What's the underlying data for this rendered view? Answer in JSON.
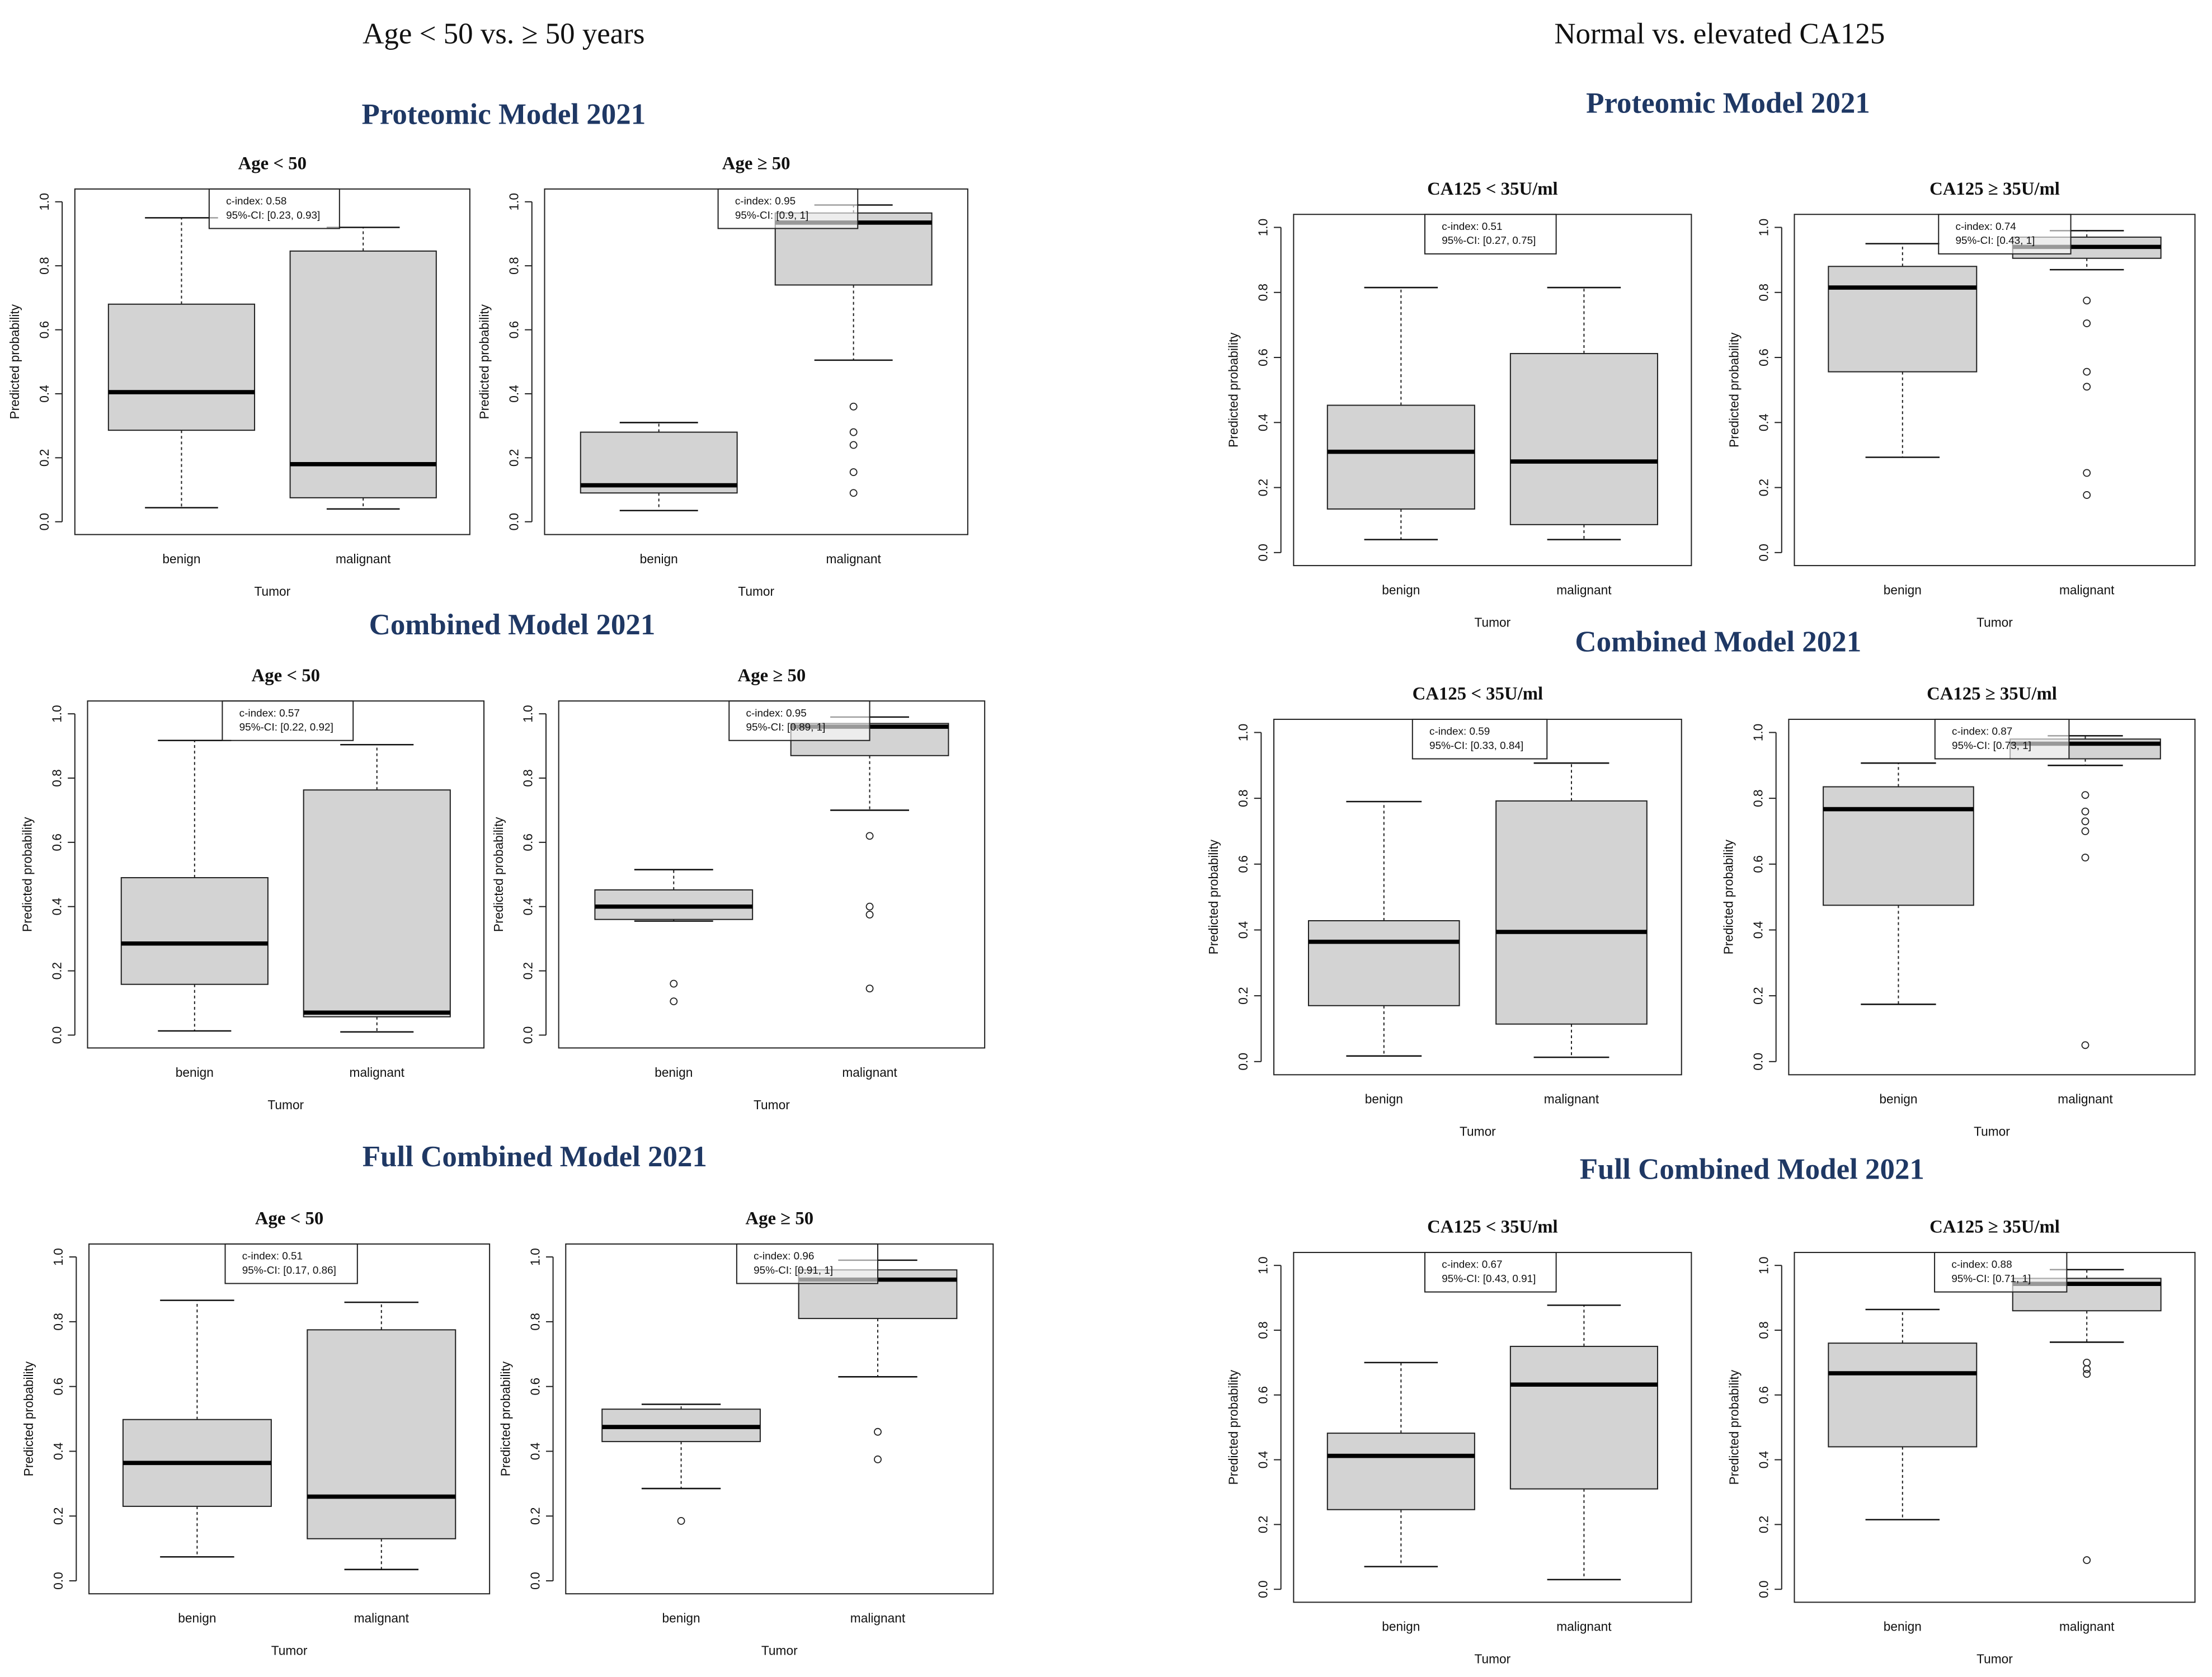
{
  "column_titles": [
    "Age < 50 vs. ≥ 50 years",
    "Normal vs. elevated CA125"
  ],
  "section_titles": [
    "Proteomic Model 2021",
    "Combined Model 2021",
    "Full Combined Model 2021",
    "Proteomic Model 2021",
    "Combined Model 2021",
    "Full Combined Model 2021"
  ],
  "chart_data": [
    {
      "type": "box",
      "title": "Age < 50",
      "xlabel": "Tumor",
      "ylabel": "Predicted probability",
      "categories": [
        "benign",
        "malignant"
      ],
      "annotation": [
        "c-index: 0.58",
        "95%-CI: [0.23, 0.93]"
      ],
      "ylim": [
        -0.04,
        1.04
      ],
      "yticks": [
        {
          "value": 0,
          "label": "0.0"
        },
        0.2,
        0.4,
        0.6,
        0.8,
        {
          "value": 1,
          "label": "1.0"
        }
      ],
      "boxes": [
        {
          "whislo": 0.044,
          "q1": 0.286,
          "med": 0.405,
          "q3": 0.68,
          "whishi": 0.95,
          "fliers": []
        },
        {
          "whislo": 0.04,
          "q1": 0.075,
          "med": 0.18,
          "q3": 0.846,
          "whishi": 0.92,
          "fliers": []
        }
      ]
    },
    {
      "type": "box",
      "title": "Age ≥ 50",
      "xlabel": "Tumor",
      "ylabel": "Predicted probability",
      "categories": [
        "benign",
        "malignant"
      ],
      "annotation": [
        "c-index: 0.95",
        "95%-CI: [0.9, 1]"
      ],
      "ylim": [
        -0.04,
        1.04
      ],
      "yticks": [
        {
          "value": 0,
          "label": "0.0"
        },
        0.2,
        0.4,
        0.6,
        0.8,
        {
          "value": 1,
          "label": "1.0"
        }
      ],
      "boxes": [
        {
          "whislo": 0.035,
          "q1": 0.09,
          "med": 0.114,
          "q3": 0.28,
          "whishi": 0.31,
          "fliers": []
        },
        {
          "whislo": 0.505,
          "q1": 0.74,
          "med": 0.935,
          "q3": 0.965,
          "whishi": 0.99,
          "fliers": [
            0.36,
            0.28,
            0.24,
            0.155,
            0.09
          ]
        }
      ]
    },
    {
      "type": "box",
      "title": "Age < 50",
      "xlabel": "Tumor",
      "ylabel": "Predicted probability",
      "categories": [
        "benign",
        "malignant"
      ],
      "annotation": [
        "c-index: 0.57",
        "95%-CI: [0.22, 0.92]"
      ],
      "ylim": [
        -0.04,
        1.04
      ],
      "yticks": [
        {
          "value": 0,
          "label": "0.0"
        },
        0.2,
        0.4,
        0.6,
        0.8,
        {
          "value": 1,
          "label": "1.0"
        }
      ],
      "boxes": [
        {
          "whislo": 0.013,
          "q1": 0.158,
          "med": 0.285,
          "q3": 0.49,
          "whishi": 0.917,
          "fliers": []
        },
        {
          "whislo": 0.01,
          "q1": 0.057,
          "med": 0.07,
          "q3": 0.763,
          "whishi": 0.904,
          "fliers": []
        }
      ]
    },
    {
      "type": "box",
      "title": "Age ≥ 50",
      "xlabel": "Tumor",
      "ylabel": "Predicted probability",
      "categories": [
        "benign",
        "malignant"
      ],
      "annotation": [
        "c-index: 0.95",
        "95%-CI: [0.89, 1]"
      ],
      "ylim": [
        -0.04,
        1.04
      ],
      "yticks": [
        {
          "value": 0,
          "label": "0.0"
        },
        0.2,
        0.4,
        0.6,
        0.8,
        {
          "value": 1,
          "label": "1.0"
        }
      ],
      "boxes": [
        {
          "whislo": 0.355,
          "q1": 0.36,
          "med": 0.4,
          "q3": 0.452,
          "whishi": 0.515,
          "fliers": [
            0.16,
            0.105
          ]
        },
        {
          "whislo": 0.7,
          "q1": 0.87,
          "med": 0.96,
          "q3": 0.97,
          "whishi": 0.99,
          "fliers": [
            0.62,
            0.4,
            0.375,
            0.145
          ]
        }
      ]
    },
    {
      "type": "box",
      "title": "Age < 50",
      "xlabel": "Tumor",
      "ylabel": "Predicted probability",
      "categories": [
        "benign",
        "malignant"
      ],
      "annotation": [
        "c-index: 0.51",
        "95%-CI: [0.17, 0.86]"
      ],
      "ylim": [
        -0.04,
        1.04
      ],
      "yticks": [
        {
          "value": 0,
          "label": "0.0"
        },
        0.2,
        0.4,
        0.6,
        0.8,
        {
          "value": 1,
          "label": "1.0"
        }
      ],
      "boxes": [
        {
          "whislo": 0.074,
          "q1": 0.23,
          "med": 0.364,
          "q3": 0.498,
          "whishi": 0.866,
          "fliers": []
        },
        {
          "whislo": 0.035,
          "q1": 0.13,
          "med": 0.26,
          "q3": 0.775,
          "whishi": 0.86,
          "fliers": []
        }
      ]
    },
    {
      "type": "box",
      "title": "Age ≥ 50",
      "xlabel": "Tumor",
      "ylabel": "Predicted probability",
      "categories": [
        "benign",
        "malignant"
      ],
      "annotation": [
        "c-index: 0.96",
        "95%-CI: [0.91, 1]"
      ],
      "ylim": [
        -0.04,
        1.04
      ],
      "yticks": [
        {
          "value": 0,
          "label": "0.0"
        },
        0.2,
        0.4,
        0.6,
        0.8,
        {
          "value": 1,
          "label": "1.0"
        }
      ],
      "boxes": [
        {
          "whislo": 0.285,
          "q1": 0.43,
          "med": 0.475,
          "q3": 0.53,
          "whishi": 0.545,
          "fliers": [
            0.185
          ]
        },
        {
          "whislo": 0.63,
          "q1": 0.81,
          "med": 0.93,
          "q3": 0.96,
          "whishi": 0.99,
          "fliers": [
            0.46,
            0.375
          ]
        }
      ]
    },
    {
      "type": "box",
      "title": "CA125 < 35U/ml",
      "xlabel": "Tumor",
      "ylabel": "Predicted probability",
      "categories": [
        "benign",
        "malignant"
      ],
      "annotation": [
        "c-index: 0.51",
        "95%-CI: [0.27, 0.75]"
      ],
      "ylim": [
        -0.04,
        1.04
      ],
      "yticks": [
        {
          "value": 0,
          "label": "0.0"
        },
        0.2,
        0.4,
        0.6,
        0.8,
        {
          "value": 1,
          "label": "1.0"
        }
      ],
      "boxes": [
        {
          "whislo": 0.04,
          "q1": 0.134,
          "med": 0.31,
          "q3": 0.453,
          "whishi": 0.815,
          "fliers": []
        },
        {
          "whislo": 0.04,
          "q1": 0.086,
          "med": 0.28,
          "q3": 0.612,
          "whishi": 0.815,
          "fliers": []
        }
      ]
    },
    {
      "type": "box",
      "title": "CA125 ≥ 35U/ml",
      "xlabel": "Tumor",
      "ylabel": "Predicted probability",
      "categories": [
        "benign",
        "malignant"
      ],
      "annotation": [
        "c-index: 0.74",
        "95%-CI: [0.43, 1]"
      ],
      "ylim": [
        -0.04,
        1.04
      ],
      "yticks": [
        {
          "value": 0,
          "label": "0.0"
        },
        0.2,
        0.4,
        0.6,
        0.8,
        {
          "value": 1,
          "label": "1.0"
        }
      ],
      "boxes": [
        {
          "whislo": 0.293,
          "q1": 0.556,
          "med": 0.815,
          "q3": 0.88,
          "whishi": 0.95,
          "fliers": []
        },
        {
          "whislo": 0.87,
          "q1": 0.905,
          "med": 0.94,
          "q3": 0.97,
          "whishi": 0.99,
          "fliers": [
            0.775,
            0.705,
            0.556,
            0.51,
            0.245,
            0.177
          ]
        }
      ]
    },
    {
      "type": "box",
      "title": "CA125 < 35U/ml",
      "xlabel": "Tumor",
      "ylabel": "Predicted probability",
      "categories": [
        "benign",
        "malignant"
      ],
      "annotation": [
        "c-index: 0.59",
        "95%-CI: [0.33, 0.84]"
      ],
      "ylim": [
        -0.04,
        1.04
      ],
      "yticks": [
        {
          "value": 0,
          "label": "0.0"
        },
        0.2,
        0.4,
        0.6,
        0.8,
        {
          "value": 1,
          "label": "1.0"
        }
      ],
      "boxes": [
        {
          "whislo": 0.017,
          "q1": 0.17,
          "med": 0.364,
          "q3": 0.428,
          "whishi": 0.79,
          "fliers": []
        },
        {
          "whislo": 0.013,
          "q1": 0.114,
          "med": 0.394,
          "q3": 0.792,
          "whishi": 0.907,
          "fliers": []
        }
      ]
    },
    {
      "type": "box",
      "title": "CA125 ≥ 35U/ml",
      "xlabel": "Tumor",
      "ylabel": "Predicted probability",
      "categories": [
        "benign",
        "malignant"
      ],
      "annotation": [
        "c-index: 0.87",
        "95%-CI: [0.73, 1]"
      ],
      "ylim": [
        -0.04,
        1.04
      ],
      "yticks": [
        {
          "value": 0,
          "label": "0.0"
        },
        0.2,
        0.4,
        0.6,
        0.8,
        {
          "value": 1,
          "label": "1.0"
        }
      ],
      "boxes": [
        {
          "whislo": 0.174,
          "q1": 0.475,
          "med": 0.767,
          "q3": 0.835,
          "whishi": 0.907,
          "fliers": []
        },
        {
          "whislo": 0.9,
          "q1": 0.92,
          "med": 0.966,
          "q3": 0.98,
          "whishi": 0.99,
          "fliers": [
            0.81,
            0.76,
            0.73,
            0.7,
            0.62,
            0.05
          ]
        }
      ]
    },
    {
      "type": "box",
      "title": "CA125 < 35U/ml",
      "xlabel": "Tumor",
      "ylabel": "Predicted probability",
      "categories": [
        "benign",
        "malignant"
      ],
      "annotation": [
        "c-index: 0.67",
        "95%-CI: [0.43, 0.91]"
      ],
      "ylim": [
        -0.04,
        1.04
      ],
      "yticks": [
        {
          "value": 0,
          "label": "0.0"
        },
        0.2,
        0.4,
        0.6,
        0.8,
        {
          "value": 1,
          "label": "1.0"
        }
      ],
      "boxes": [
        {
          "whislo": 0.07,
          "q1": 0.246,
          "med": 0.412,
          "q3": 0.482,
          "whishi": 0.7,
          "fliers": []
        },
        {
          "whislo": 0.03,
          "q1": 0.31,
          "med": 0.632,
          "q3": 0.75,
          "whishi": 0.877,
          "fliers": []
        }
      ]
    },
    {
      "type": "box",
      "title": "CA125 ≥ 35U/ml",
      "xlabel": "Tumor",
      "ylabel": "Predicted probability",
      "categories": [
        "benign",
        "malignant"
      ],
      "annotation": [
        "c-index: 0.88",
        "95%-CI: [0.71, 1]"
      ],
      "ylim": [
        -0.04,
        1.04
      ],
      "yticks": [
        {
          "value": 0,
          "label": "0.0"
        },
        0.2,
        0.4,
        0.6,
        0.8,
        {
          "value": 1,
          "label": "1.0"
        }
      ],
      "boxes": [
        {
          "whislo": 0.215,
          "q1": 0.44,
          "med": 0.667,
          "q3": 0.76,
          "whishi": 0.864,
          "fliers": []
        },
        {
          "whislo": 0.763,
          "q1": 0.86,
          "med": 0.943,
          "q3": 0.96,
          "whishi": 0.987,
          "fliers": [
            0.7,
            0.68,
            0.665,
            0.09
          ]
        }
      ]
    }
  ]
}
